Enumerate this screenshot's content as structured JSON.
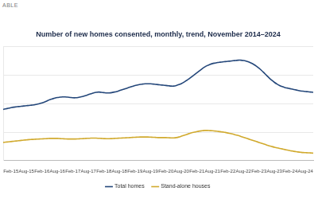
{
  "chart_data": {
    "type": "line",
    "title": "Number of new homes consented, monthly, trend, November 2014–2024",
    "annotations": [
      "ABLE"
    ],
    "categories": [
      null,
      null,
      null,
      "Feb-15",
      null,
      null,
      null,
      null,
      null,
      "Aug-15",
      null,
      null,
      null,
      null,
      null,
      "Feb-16",
      null,
      null,
      null,
      null,
      null,
      "Aug-16",
      null,
      null,
      null,
      null,
      null,
      "Feb-17",
      null,
      null,
      null,
      null,
      null,
      "Aug-17",
      null,
      null,
      null,
      null,
      null,
      "Feb-18",
      null,
      null,
      null,
      null,
      null,
      "Aug-18",
      null,
      null,
      null,
      null,
      null,
      "Feb-19",
      null,
      null,
      null,
      null,
      null,
      "Aug-19",
      null,
      null,
      null,
      null,
      null,
      "Feb-20",
      null,
      null,
      null,
      null,
      null,
      "Aug-20",
      null,
      null,
      null,
      null,
      null,
      "Feb-21",
      null,
      null,
      null,
      null,
      null,
      "Aug-21",
      null,
      null,
      null,
      null,
      null,
      "Feb-22",
      null,
      null,
      null,
      null,
      null,
      "Aug-22",
      null,
      null,
      null,
      null,
      null,
      "Feb-23",
      null,
      null,
      null,
      null,
      null,
      "Aug-23",
      null,
      null,
      null,
      null,
      null,
      "Feb-24",
      null,
      null,
      null,
      null,
      null,
      "Aug-24",
      null,
      null,
      null
    ],
    "series": [
      {
        "name": "Total homes",
        "color": "#24477a",
        "values": [
          1800,
          1820,
          1840,
          1860,
          1880,
          1890,
          1900,
          1910,
          1920,
          1930,
          1940,
          1950,
          1960,
          1980,
          2000,
          2030,
          2060,
          2100,
          2140,
          2170,
          2200,
          2220,
          2230,
          2240,
          2240,
          2230,
          2220,
          2210,
          2210,
          2220,
          2240,
          2260,
          2290,
          2320,
          2350,
          2380,
          2400,
          2410,
          2400,
          2390,
          2380,
          2380,
          2390,
          2410,
          2430,
          2460,
          2490,
          2520,
          2550,
          2580,
          2610,
          2640,
          2660,
          2680,
          2690,
          2700,
          2700,
          2700,
          2690,
          2680,
          2670,
          2660,
          2650,
          2640,
          2630,
          2620,
          2620,
          2640,
          2670,
          2710,
          2760,
          2820,
          2880,
          2950,
          3020,
          3090,
          3160,
          3230,
          3290,
          3340,
          3380,
          3410,
          3430,
          3450,
          3460,
          3470,
          3480,
          3490,
          3500,
          3510,
          3520,
          3530,
          3530,
          3520,
          3500,
          3470,
          3430,
          3380,
          3320,
          3250,
          3170,
          3080,
          2990,
          2900,
          2820,
          2750,
          2690,
          2640,
          2600,
          2570,
          2550,
          2530,
          2510,
          2490,
          2470,
          2450,
          2440,
          2430,
          2420,
          2410,
          2400
        ]
      },
      {
        "name": "Stand-alone houses",
        "color": "#d1aa2e",
        "values": [
          640,
          650,
          660,
          670,
          680,
          690,
          700,
          710,
          720,
          730,
          740,
          745,
          750,
          755,
          760,
          765,
          770,
          775,
          780,
          780,
          780,
          780,
          775,
          770,
          765,
          760,
          760,
          760,
          760,
          765,
          770,
          775,
          780,
          785,
          790,
          790,
          790,
          785,
          780,
          775,
          770,
          770,
          775,
          780,
          785,
          790,
          795,
          800,
          805,
          810,
          815,
          820,
          825,
          830,
          830,
          830,
          830,
          825,
          820,
          815,
          810,
          810,
          810,
          810,
          805,
          800,
          800,
          810,
          830,
          860,
          890,
          920,
          950,
          980,
          1000,
          1020,
          1040,
          1050,
          1060,
          1060,
          1055,
          1050,
          1040,
          1030,
          1020,
          1005,
          990,
          970,
          950,
          930,
          905,
          880,
          850,
          820,
          790,
          760,
          730,
          700,
          670,
          640,
          610,
          580,
          550,
          520,
          495,
          470,
          450,
          430,
          410,
          390,
          370,
          350,
          335,
          320,
          305,
          295,
          285,
          280,
          275,
          270,
          265
        ]
      }
    ],
    "ylim": [
      0,
      4000
    ],
    "yticks": [
      0,
      1000,
      2000,
      3000,
      4000
    ],
    "grid": true,
    "legend": "bottom",
    "tick_labels": "x"
  }
}
